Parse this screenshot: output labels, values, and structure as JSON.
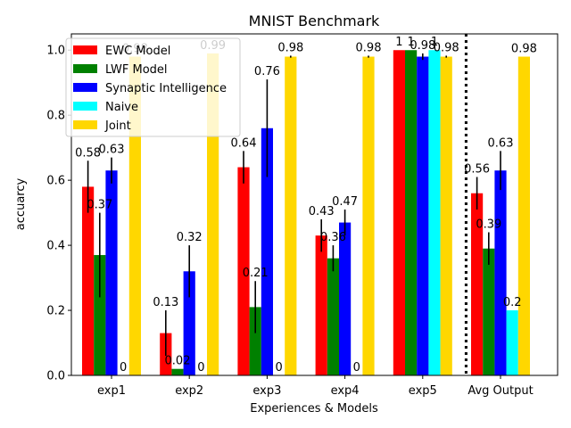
{
  "chart_data": {
    "type": "bar",
    "title": "MNIST Benchmark",
    "xlabel": "Experiences & Models",
    "ylabel": "accuarcy",
    "ylim": [
      0,
      1.05
    ],
    "yticks": [
      0.0,
      0.2,
      0.4,
      0.6,
      0.8,
      1.0
    ],
    "ytick_labels": [
      "0.0",
      "0.2",
      "0.4",
      "0.6",
      "0.8",
      "1.0"
    ],
    "categories": [
      "exp1",
      "exp2",
      "exp3",
      "exp4",
      "exp5",
      "Avg Output"
    ],
    "legend_position": "top-left",
    "divider": {
      "between": [
        "exp5",
        "Avg Output"
      ],
      "style": "dotted",
      "color": "#000000"
    },
    "series": [
      {
        "name": "EWC Model",
        "color": "#ff0000",
        "values": [
          0.58,
          0.13,
          0.64,
          0.43,
          1.0,
          0.56
        ],
        "errors": [
          0.08,
          0.07,
          0.05,
          0.05,
          0.0,
          0.05
        ],
        "labels": [
          "0.58",
          "0.13",
          "0.64",
          "0.43",
          "1",
          "0.56"
        ]
      },
      {
        "name": "LWF Model",
        "color": "#008000",
        "values": [
          0.37,
          0.02,
          0.21,
          0.36,
          1.0,
          0.39
        ],
        "errors": [
          0.13,
          0.0,
          0.08,
          0.04,
          0.0,
          0.05
        ],
        "labels": [
          "0.37",
          "0.02",
          "0.21",
          "0.36",
          "1",
          "0.39"
        ]
      },
      {
        "name": "Synaptic Intelligence",
        "color": "#0000ff",
        "values": [
          0.63,
          0.32,
          0.76,
          0.47,
          0.98,
          0.63
        ],
        "errors": [
          0.04,
          0.08,
          0.15,
          0.04,
          0.01,
          0.06
        ],
        "labels": [
          "0.63",
          "0.32",
          "0.76",
          "0.47",
          "0.98",
          "0.63"
        ]
      },
      {
        "name": "Naive",
        "color": "#00ffff",
        "values": [
          0.0,
          0.0,
          0.0,
          0.0,
          1.0,
          0.2
        ],
        "errors": [
          0.0,
          0.0,
          0.0,
          0.0,
          0.0,
          0.0
        ],
        "labels": [
          "0",
          "0",
          "0",
          "0",
          "1",
          "0.2"
        ]
      },
      {
        "name": "Joint",
        "color": "#ffd700",
        "values": [
          0.98,
          0.99,
          0.98,
          0.98,
          0.98,
          0.98
        ],
        "errors": [
          0.0,
          0.0,
          0.003,
          0.003,
          0.003,
          0.0
        ],
        "labels": [
          "0.98",
          "0.99",
          "0.98",
          "0.98",
          "0.98",
          "0.98"
        ]
      }
    ]
  }
}
